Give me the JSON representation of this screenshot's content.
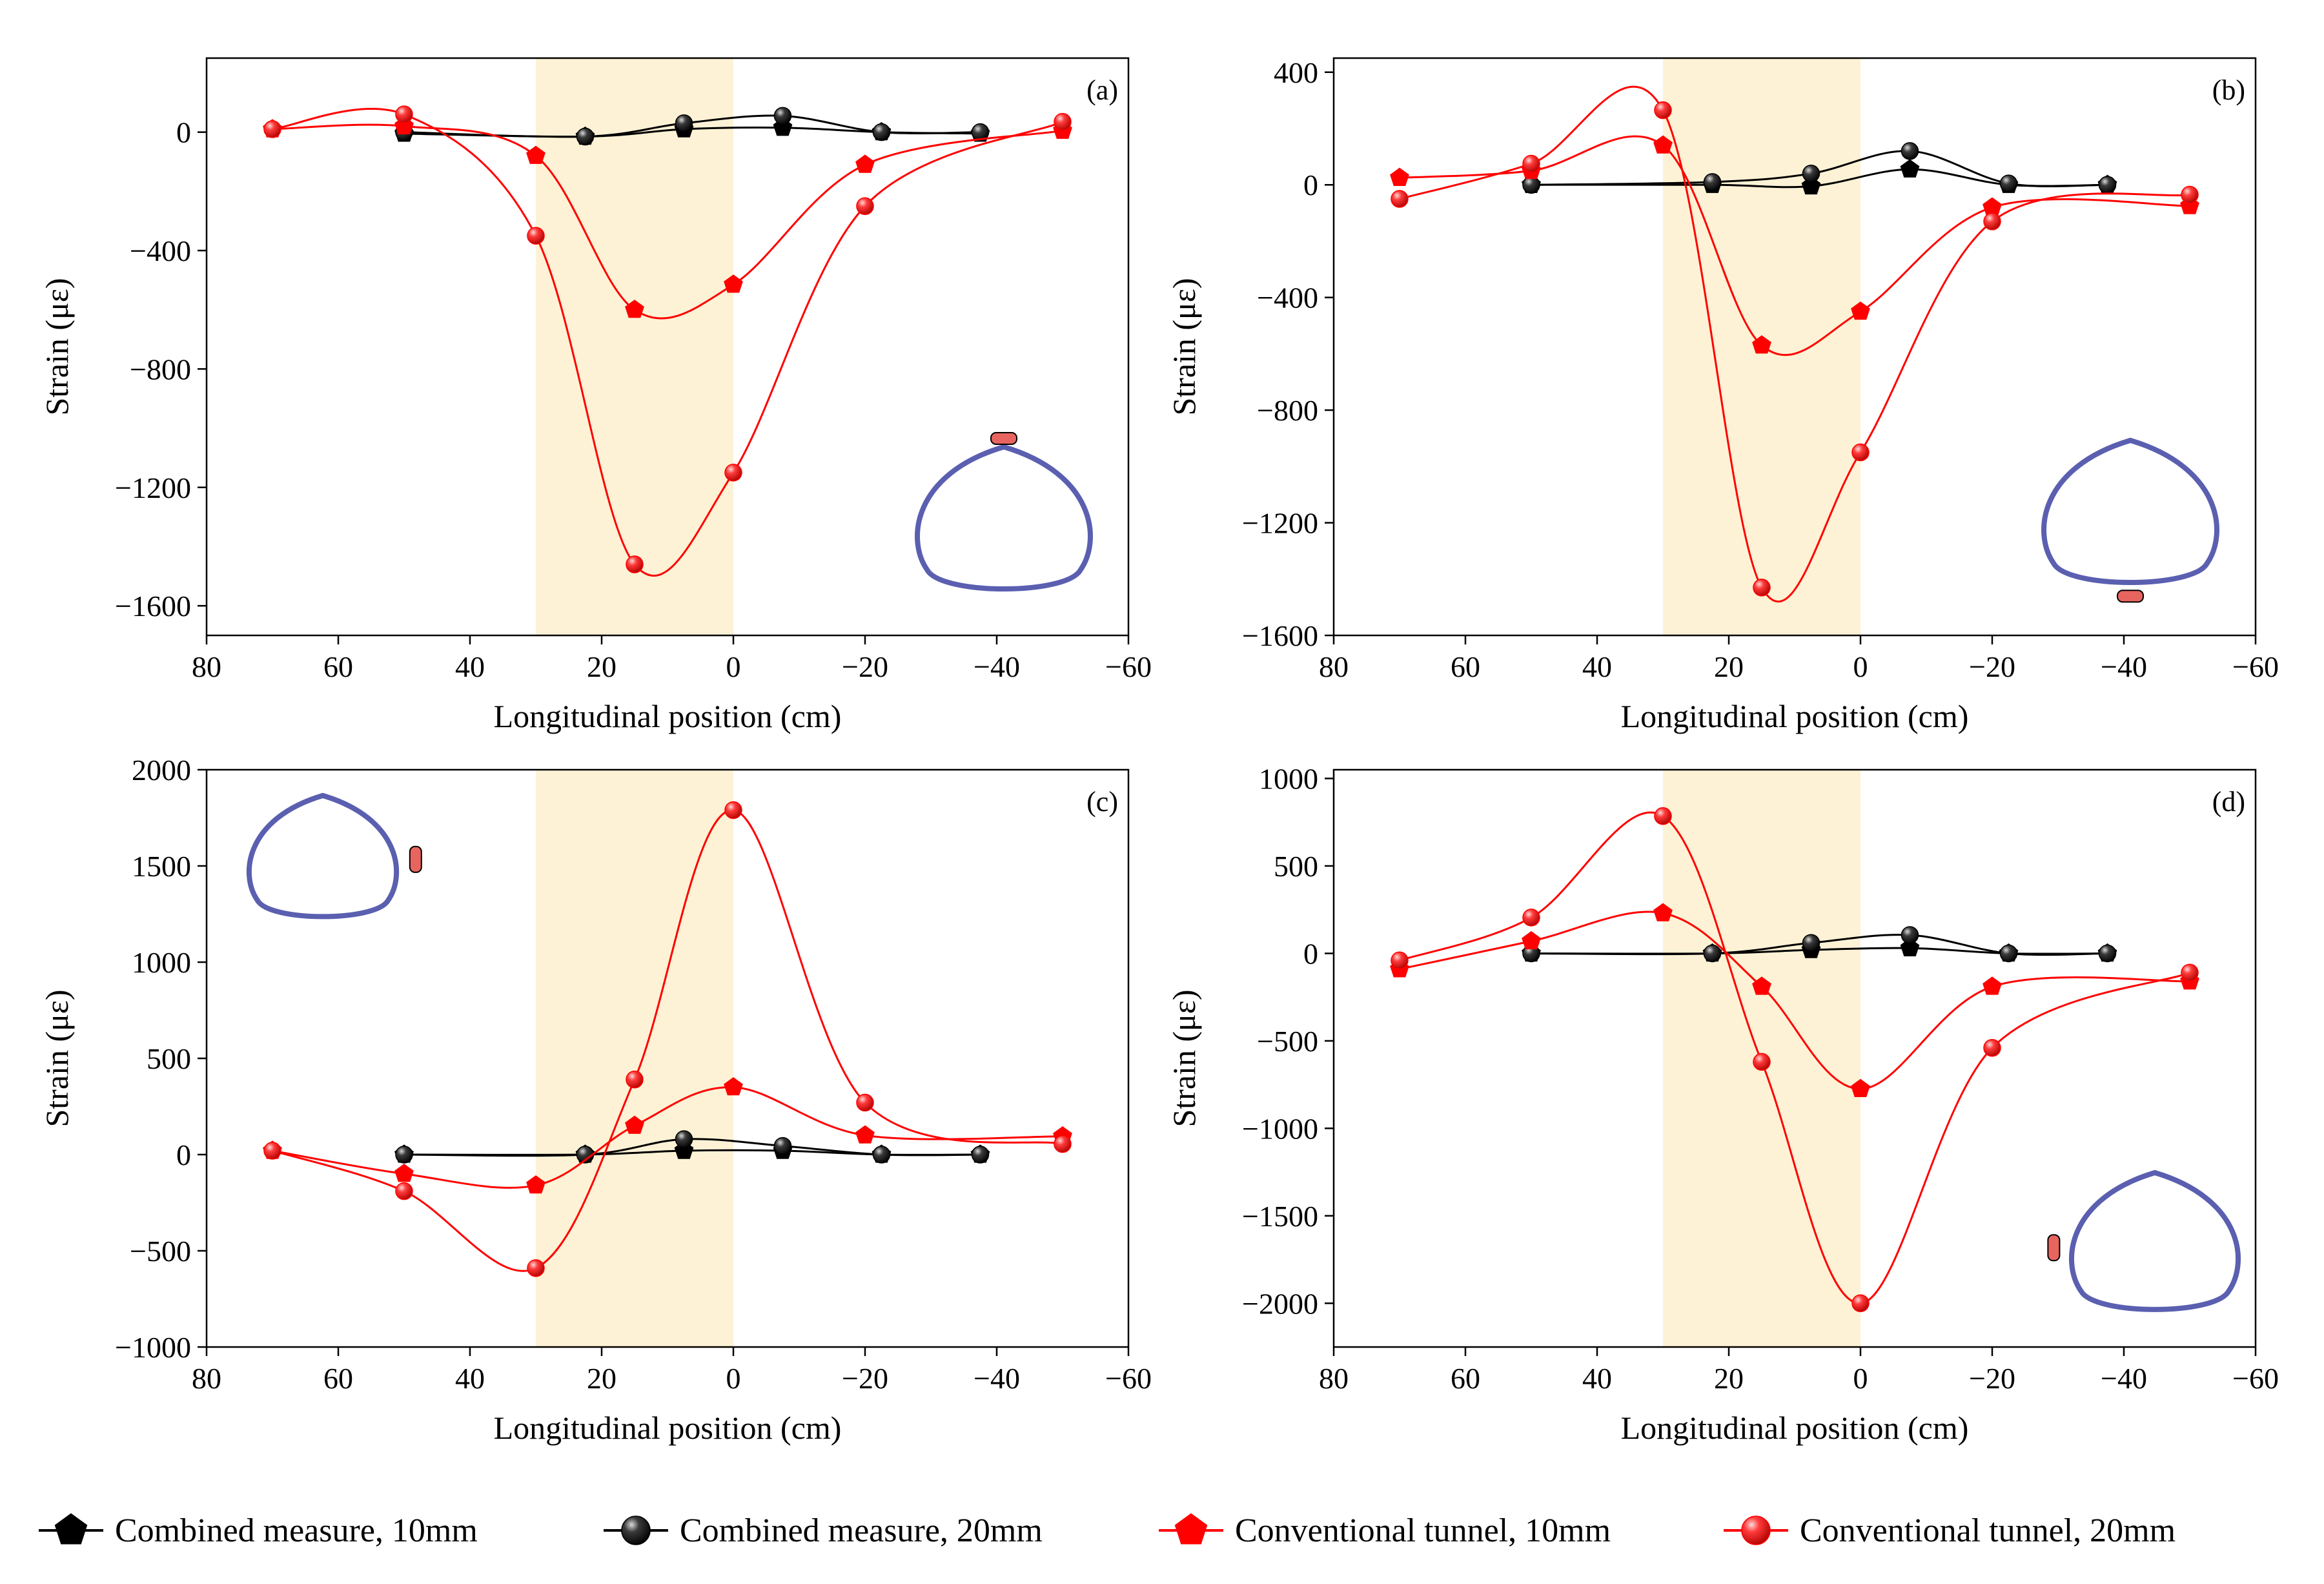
{
  "legend": [
    {
      "name": "Combined measure, 10mm",
      "color": "#000000",
      "marker": "pentagon"
    },
    {
      "name": "Combined measure, 20mm",
      "color": "#000000",
      "marker": "sphere"
    },
    {
      "name": "Conventional tunnel, 10mm",
      "color": "#ff0000",
      "marker": "pentagon"
    },
    {
      "name": "Conventional tunnel, 20mm",
      "color": "#ff0000",
      "marker": "sphere"
    }
  ],
  "colors": {
    "combined": "#000000",
    "conventional": "#ff0000",
    "shade": "#fdf2d5",
    "tunnel": "#5a5fb0",
    "gauge": "#e8655f"
  },
  "chart_data": [
    {
      "type": "line",
      "panel_label": "(a)",
      "xlabel": "Longitudinal position (cm)",
      "ylabel": "Strain  (με)",
      "xlim": [
        80,
        -60
      ],
      "ylim": [
        -1700,
        250
      ],
      "xticks": [
        80,
        60,
        40,
        20,
        0,
        -20,
        -40,
        -60
      ],
      "yticks": [
        0,
        -400,
        -800,
        -1200,
        -1600
      ],
      "shaded_region": [
        30,
        0
      ],
      "gauge_position": "crown",
      "series": [
        {
          "name": "Combined measure, 10mm",
          "x": [
            50,
            22.5,
            7.5,
            -7.5,
            -22.5,
            -37.5
          ],
          "y": [
            -5,
            -15,
            10,
            15,
            0,
            -5
          ]
        },
        {
          "name": "Combined measure, 20mm",
          "x": [
            50,
            22.5,
            7.5,
            -7.5,
            -22.5,
            -37.5
          ],
          "y": [
            0,
            -15,
            30,
            55,
            0,
            0
          ]
        },
        {
          "name": "Conventional tunnel, 10mm",
          "x": [
            70,
            50,
            30,
            15,
            0,
            -20,
            -50
          ],
          "y": [
            10,
            20,
            -80,
            -600,
            -515,
            -110,
            5
          ]
        },
        {
          "name": "Conventional tunnel, 20mm",
          "x": [
            70,
            50,
            30,
            15,
            0,
            -20,
            -50
          ],
          "y": [
            10,
            60,
            -350,
            -1460,
            -1150,
            -250,
            35
          ]
        }
      ]
    },
    {
      "type": "line",
      "panel_label": "(b)",
      "xlabel": "Longitudinal position (cm)",
      "ylabel": "Strain  (με)",
      "xlim": [
        80,
        -60
      ],
      "ylim": [
        -1600,
        450
      ],
      "xticks": [
        80,
        60,
        40,
        20,
        0,
        -20,
        -40,
        -60
      ],
      "yticks": [
        400,
        0,
        -400,
        -800,
        -1200,
        -1600
      ],
      "shaded_region": [
        30,
        0
      ],
      "gauge_position": "invert",
      "series": [
        {
          "name": "Combined measure, 10mm",
          "x": [
            50,
            22.5,
            7.5,
            -7.5,
            -22.5,
            -37.5
          ],
          "y": [
            0,
            0,
            -5,
            55,
            0,
            0
          ]
        },
        {
          "name": "Combined measure, 20mm",
          "x": [
            50,
            22.5,
            7.5,
            -7.5,
            -22.5,
            -37.5
          ],
          "y": [
            0,
            10,
            40,
            120,
            5,
            0
          ]
        },
        {
          "name": "Conventional tunnel, 10mm",
          "x": [
            70,
            50,
            30,
            15,
            0,
            -20,
            -50
          ],
          "y": [
            25,
            50,
            140,
            -570,
            -450,
            -80,
            -75
          ]
        },
        {
          "name": "Conventional tunnel, 20mm",
          "x": [
            70,
            50,
            30,
            15,
            0,
            -20,
            -50
          ],
          "y": [
            -50,
            75,
            265,
            -1430,
            -950,
            -130,
            -35
          ]
        }
      ]
    },
    {
      "type": "line",
      "panel_label": "(c)",
      "xlabel": "Longitudinal position (cm)",
      "ylabel": "Strain  (με)",
      "xlim": [
        80,
        -60
      ],
      "ylim": [
        -1000,
        2000
      ],
      "xticks": [
        80,
        60,
        40,
        20,
        0,
        -20,
        -40,
        -60
      ],
      "yticks": [
        2000,
        1500,
        1000,
        500,
        0,
        -500,
        -1000
      ],
      "shaded_region": [
        30,
        0
      ],
      "gauge_position": "right-side",
      "series": [
        {
          "name": "Combined measure, 10mm",
          "x": [
            50,
            22.5,
            7.5,
            -7.5,
            -22.5,
            -37.5
          ],
          "y": [
            0,
            0,
            20,
            20,
            0,
            0
          ]
        },
        {
          "name": "Combined measure, 20mm",
          "x": [
            50,
            22.5,
            7.5,
            -7.5,
            -22.5,
            -37.5
          ],
          "y": [
            0,
            0,
            80,
            45,
            0,
            0
          ]
        },
        {
          "name": "Conventional tunnel, 10mm",
          "x": [
            70,
            50,
            30,
            15,
            0,
            -20,
            -50
          ],
          "y": [
            20,
            -100,
            -160,
            150,
            350,
            100,
            95
          ]
        },
        {
          "name": "Conventional tunnel, 20mm",
          "x": [
            70,
            50,
            30,
            15,
            0,
            -20,
            -50
          ],
          "y": [
            20,
            -190,
            -590,
            390,
            1790,
            270,
            55
          ]
        }
      ]
    },
    {
      "type": "line",
      "panel_label": "(d)",
      "xlabel": "Longitudinal position (cm)",
      "ylabel": "Strain  (με)",
      "xlim": [
        80,
        -60
      ],
      "ylim": [
        -2250,
        1050
      ],
      "xticks": [
        80,
        60,
        40,
        20,
        0,
        -20,
        -40,
        -60
      ],
      "yticks": [
        1000,
        500,
        0,
        -500,
        -1000,
        -1500,
        -2000
      ],
      "shaded_region": [
        30,
        0
      ],
      "gauge_position": "left-side",
      "series": [
        {
          "name": "Combined measure, 10mm",
          "x": [
            50,
            22.5,
            7.5,
            -7.5,
            -22.5,
            -37.5
          ],
          "y": [
            0,
            0,
            20,
            30,
            0,
            0
          ]
        },
        {
          "name": "Combined measure, 20mm",
          "x": [
            50,
            22.5,
            7.5,
            -7.5,
            -22.5,
            -37.5
          ],
          "y": [
            0,
            0,
            60,
            105,
            0,
            0
          ]
        },
        {
          "name": "Conventional tunnel, 10mm",
          "x": [
            70,
            50,
            30,
            15,
            0,
            -20,
            -50
          ],
          "y": [
            -90,
            70,
            230,
            -190,
            -775,
            -190,
            -160
          ]
        },
        {
          "name": "Conventional tunnel, 20mm",
          "x": [
            70,
            50,
            30,
            15,
            0,
            -20,
            -50
          ],
          "y": [
            -40,
            205,
            785,
            -620,
            -2000,
            -540,
            -110
          ]
        }
      ]
    }
  ]
}
